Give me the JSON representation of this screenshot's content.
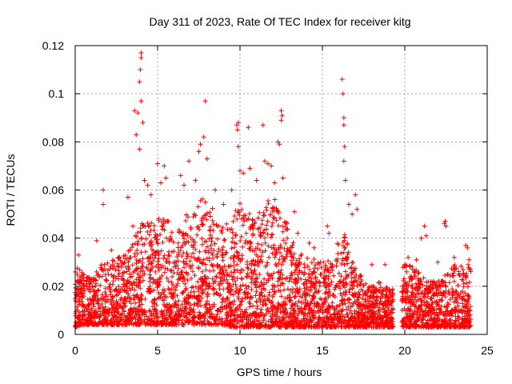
{
  "chart_data": {
    "type": "scatter",
    "title": "Day 311 of 2023, Rate Of TEC Index for receiver kitg",
    "xlabel": "GPS time / hours",
    "ylabel": "ROTI / TECUs",
    "xlim": [
      0,
      25
    ],
    "ylim": [
      0,
      0.12
    ],
    "xticks": [
      0,
      5,
      10,
      15,
      20,
      25
    ],
    "xtick_labels": [
      "0",
      "5",
      "10",
      "15",
      "20",
      "25"
    ],
    "yticks": [
      0,
      0.02,
      0.04,
      0.06,
      0.08,
      0.1,
      0.12
    ],
    "ytick_labels": [
      "0",
      "0.02",
      "0.04",
      "0.06",
      "0.08",
      "0.1",
      "0.12"
    ],
    "grid": true,
    "marker": "+",
    "marker_color": "#ff0000",
    "data_gap_hours": [
      19.3,
      19.8
    ],
    "envelope": {
      "x": [
        0,
        0.5,
        1,
        1.5,
        2,
        2.5,
        3,
        3.5,
        4,
        4.5,
        5,
        5.5,
        6,
        6.5,
        7,
        7.5,
        8,
        8.5,
        9,
        9.5,
        10,
        10.5,
        11,
        11.5,
        12,
        12.5,
        13,
        13.5,
        14,
        14.5,
        15,
        15.5,
        16,
        16.5,
        17,
        17.5,
        18,
        18.5,
        19.2,
        20,
        20.5,
        21,
        21.5,
        22,
        22.5,
        23,
        23.5,
        24
      ],
      "upper": [
        0.03,
        0.025,
        0.024,
        0.03,
        0.03,
        0.032,
        0.033,
        0.038,
        0.05,
        0.046,
        0.048,
        0.05,
        0.042,
        0.05,
        0.05,
        0.055,
        0.058,
        0.05,
        0.044,
        0.05,
        0.056,
        0.052,
        0.05,
        0.055,
        0.058,
        0.05,
        0.045,
        0.035,
        0.032,
        0.032,
        0.032,
        0.03,
        0.04,
        0.042,
        0.03,
        0.022,
        0.02,
        0.022,
        0.018,
        0.03,
        0.028,
        0.025,
        0.022,
        0.022,
        0.025,
        0.03,
        0.028,
        0.03
      ],
      "lower": [
        0.003,
        0.004,
        0.004,
        0.004,
        0.004,
        0.004,
        0.004,
        0.004,
        0.004,
        0.004,
        0.004,
        0.004,
        0.004,
        0.004,
        0.004,
        0.004,
        0.004,
        0.004,
        0.004,
        0.003,
        0.003,
        0.003,
        0.003,
        0.003,
        0.003,
        0.003,
        0.003,
        0.003,
        0.003,
        0.003,
        0.003,
        0.003,
        0.003,
        0.003,
        0.003,
        0.003,
        0.003,
        0.003,
        0.003,
        0.003,
        0.003,
        0.003,
        0.003,
        0.003,
        0.003,
        0.003,
        0.003,
        0.003
      ]
    },
    "spikes": [
      {
        "x": 0.2,
        "y": 0.033
      },
      {
        "x": 1.3,
        "y": 0.039
      },
      {
        "x": 1.7,
        "y": 0.06
      },
      {
        "x": 1.7,
        "y": 0.054
      },
      {
        "x": 2.2,
        "y": 0.035
      },
      {
        "x": 3.2,
        "y": 0.057
      },
      {
        "x": 3.5,
        "y": 0.045
      },
      {
        "x": 3.6,
        "y": 0.093
      },
      {
        "x": 3.7,
        "y": 0.083
      },
      {
        "x": 3.8,
        "y": 0.092
      },
      {
        "x": 3.9,
        "y": 0.105
      },
      {
        "x": 3.95,
        "y": 0.11
      },
      {
        "x": 4.0,
        "y": 0.117
      },
      {
        "x": 4.0,
        "y": 0.115
      },
      {
        "x": 4.0,
        "y": 0.097
      },
      {
        "x": 4.1,
        "y": 0.088
      },
      {
        "x": 3.9,
        "y": 0.077
      },
      {
        "x": 4.2,
        "y": 0.064
      },
      {
        "x": 4.4,
        "y": 0.062
      },
      {
        "x": 4.6,
        "y": 0.058
      },
      {
        "x": 5.0,
        "y": 0.071
      },
      {
        "x": 5.2,
        "y": 0.063
      },
      {
        "x": 5.4,
        "y": 0.07
      },
      {
        "x": 5.5,
        "y": 0.065
      },
      {
        "x": 6.4,
        "y": 0.066
      },
      {
        "x": 6.6,
        "y": 0.062
      },
      {
        "x": 6.9,
        "y": 0.072
      },
      {
        "x": 7.3,
        "y": 0.064
      },
      {
        "x": 7.5,
        "y": 0.076
      },
      {
        "x": 7.6,
        "y": 0.079
      },
      {
        "x": 7.8,
        "y": 0.082
      },
      {
        "x": 7.9,
        "y": 0.097
      },
      {
        "x": 8.0,
        "y": 0.073
      },
      {
        "x": 8.5,
        "y": 0.06
      },
      {
        "x": 9.0,
        "y": 0.054
      },
      {
        "x": 9.5,
        "y": 0.06
      },
      {
        "x": 9.8,
        "y": 0.087
      },
      {
        "x": 9.9,
        "y": 0.088
      },
      {
        "x": 9.85,
        "y": 0.085
      },
      {
        "x": 9.9,
        "y": 0.078
      },
      {
        "x": 10.0,
        "y": 0.068
      },
      {
        "x": 10.2,
        "y": 0.067
      },
      {
        "x": 10.5,
        "y": 0.086
      },
      {
        "x": 10.6,
        "y": 0.069
      },
      {
        "x": 11.0,
        "y": 0.064
      },
      {
        "x": 11.4,
        "y": 0.087
      },
      {
        "x": 11.5,
        "y": 0.072
      },
      {
        "x": 11.7,
        "y": 0.071
      },
      {
        "x": 11.9,
        "y": 0.07
      },
      {
        "x": 12.1,
        "y": 0.063
      },
      {
        "x": 12.3,
        "y": 0.08
      },
      {
        "x": 12.4,
        "y": 0.079
      },
      {
        "x": 12.5,
        "y": 0.093
      },
      {
        "x": 12.55,
        "y": 0.091
      },
      {
        "x": 12.5,
        "y": 0.089
      },
      {
        "x": 12.6,
        "y": 0.065
      },
      {
        "x": 13.3,
        "y": 0.051
      },
      {
        "x": 13.5,
        "y": 0.042
      },
      {
        "x": 14.2,
        "y": 0.038
      },
      {
        "x": 14.5,
        "y": 0.036
      },
      {
        "x": 15.3,
        "y": 0.045
      },
      {
        "x": 15.4,
        "y": 0.042
      },
      {
        "x": 16.2,
        "y": 0.106
      },
      {
        "x": 16.25,
        "y": 0.1
      },
      {
        "x": 16.3,
        "y": 0.09
      },
      {
        "x": 16.3,
        "y": 0.087
      },
      {
        "x": 16.35,
        "y": 0.078
      },
      {
        "x": 16.3,
        "y": 0.072
      },
      {
        "x": 16.4,
        "y": 0.064
      },
      {
        "x": 16.6,
        "y": 0.054
      },
      {
        "x": 16.8,
        "y": 0.05
      },
      {
        "x": 17.0,
        "y": 0.058
      },
      {
        "x": 17.1,
        "y": 0.052
      },
      {
        "x": 18.0,
        "y": 0.029
      },
      {
        "x": 18.8,
        "y": 0.029
      },
      {
        "x": 20.2,
        "y": 0.032
      },
      {
        "x": 20.7,
        "y": 0.031
      },
      {
        "x": 21.0,
        "y": 0.04
      },
      {
        "x": 21.2,
        "y": 0.045
      },
      {
        "x": 21.3,
        "y": 0.041
      },
      {
        "x": 22.0,
        "y": 0.03
      },
      {
        "x": 22.4,
        "y": 0.046
      },
      {
        "x": 22.45,
        "y": 0.047
      },
      {
        "x": 22.5,
        "y": 0.045
      },
      {
        "x": 23.0,
        "y": 0.032
      },
      {
        "x": 23.7,
        "y": 0.037
      },
      {
        "x": 23.8,
        "y": 0.036
      },
      {
        "x": 23.9,
        "y": 0.031
      }
    ]
  }
}
